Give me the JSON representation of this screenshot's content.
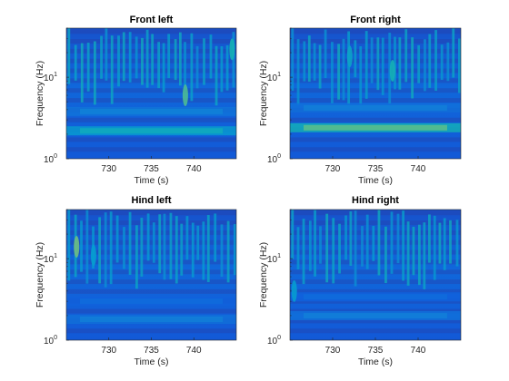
{
  "chart_data": [
    {
      "type": "heatmap",
      "title": "Front left",
      "xlabel": "Time (s)",
      "ylabel": "Frequency (Hz)",
      "xlim": [
        725,
        745
      ],
      "ylim": [
        1,
        40
      ],
      "yscale": "log",
      "xticks": [
        730,
        735,
        740
      ],
      "yticks": [
        {
          "base": "10",
          "exp": "0",
          "value": 1
        },
        {
          "base": "10",
          "exp": "1",
          "value": 10
        }
      ],
      "colormap": "parula",
      "bands": [
        {
          "frequency": 2.2,
          "intensity": 0.55
        },
        {
          "frequency": 3.8,
          "intensity": 0.32
        }
      ],
      "bursts": [
        {
          "time": 739,
          "frequency": 6,
          "intensity": 0.7
        },
        {
          "time": 744.5,
          "frequency": 22,
          "intensity": 0.6
        }
      ]
    },
    {
      "type": "heatmap",
      "title": "Front right",
      "xlabel": "Time (s)",
      "ylabel": "Frequency (Hz)",
      "xlim": [
        725,
        745
      ],
      "ylim": [
        1,
        40
      ],
      "yscale": "log",
      "xticks": [
        730,
        735,
        740
      ],
      "yticks": [
        {
          "base": "10",
          "exp": "0",
          "value": 1
        },
        {
          "base": "10",
          "exp": "1",
          "value": 10
        }
      ],
      "colormap": "parula",
      "bands": [
        {
          "frequency": 2.4,
          "intensity": 0.72
        },
        {
          "frequency": 4.2,
          "intensity": 0.3
        }
      ],
      "bursts": [
        {
          "time": 737,
          "frequency": 12,
          "intensity": 0.6
        },
        {
          "time": 732,
          "frequency": 18,
          "intensity": 0.5
        }
      ]
    },
    {
      "type": "heatmap",
      "title": "Hind left",
      "xlabel": "Time (s)",
      "ylabel": "Frequency (Hz)",
      "xlim": [
        725,
        745
      ],
      "ylim": [
        1,
        40
      ],
      "yscale": "log",
      "xticks": [
        730,
        735,
        740
      ],
      "yticks": [
        {
          "base": "10",
          "exp": "0",
          "value": 1
        },
        {
          "base": "10",
          "exp": "1",
          "value": 10
        }
      ],
      "colormap": "parula",
      "bands": [
        {
          "frequency": 1.8,
          "intensity": 0.3
        },
        {
          "frequency": 3.0,
          "intensity": 0.22
        }
      ],
      "bursts": [
        {
          "time": 726.2,
          "frequency": 14,
          "intensity": 0.75
        },
        {
          "time": 728.2,
          "frequency": 11,
          "intensity": 0.45
        }
      ]
    },
    {
      "type": "heatmap",
      "title": "Hind right",
      "xlabel": "Time (s)",
      "ylabel": "Frequency (Hz)",
      "xlim": [
        725,
        745
      ],
      "ylim": [
        1,
        40
      ],
      "yscale": "log",
      "xticks": [
        730,
        735,
        740
      ],
      "yticks": [
        {
          "base": "10",
          "exp": "0",
          "value": 1
        },
        {
          "base": "10",
          "exp": "1",
          "value": 10
        }
      ],
      "colormap": "parula",
      "bands": [
        {
          "frequency": 2.0,
          "intensity": 0.3
        },
        {
          "frequency": 3.4,
          "intensity": 0.22
        }
      ],
      "bursts": [
        {
          "time": 725.5,
          "frequency": 4,
          "intensity": 0.45
        }
      ]
    }
  ]
}
